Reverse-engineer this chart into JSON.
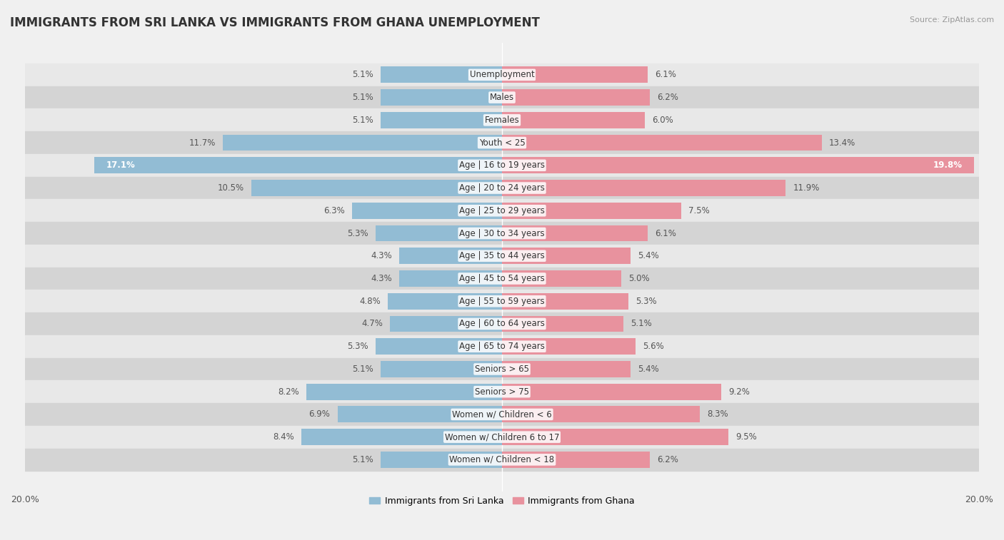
{
  "title": "IMMIGRANTS FROM SRI LANKA VS IMMIGRANTS FROM GHANA UNEMPLOYMENT",
  "source": "Source: ZipAtlas.com",
  "categories": [
    "Unemployment",
    "Males",
    "Females",
    "Youth < 25",
    "Age | 16 to 19 years",
    "Age | 20 to 24 years",
    "Age | 25 to 29 years",
    "Age | 30 to 34 years",
    "Age | 35 to 44 years",
    "Age | 45 to 54 years",
    "Age | 55 to 59 years",
    "Age | 60 to 64 years",
    "Age | 65 to 74 years",
    "Seniors > 65",
    "Seniors > 75",
    "Women w/ Children < 6",
    "Women w/ Children 6 to 17",
    "Women w/ Children < 18"
  ],
  "sri_lanka": [
    5.1,
    5.1,
    5.1,
    11.7,
    17.1,
    10.5,
    6.3,
    5.3,
    4.3,
    4.3,
    4.8,
    4.7,
    5.3,
    5.1,
    8.2,
    6.9,
    8.4,
    5.1
  ],
  "ghana": [
    6.1,
    6.2,
    6.0,
    13.4,
    19.8,
    11.9,
    7.5,
    6.1,
    5.4,
    5.0,
    5.3,
    5.1,
    5.6,
    5.4,
    9.2,
    8.3,
    9.5,
    6.2
  ],
  "sri_lanka_color": "#92bcd4",
  "ghana_color": "#e8929e",
  "row_even_color": "#e8e8e8",
  "row_odd_color": "#d4d4d4",
  "fig_bg": "#f0f0f0",
  "xlim": 20.0,
  "bar_height": 0.72,
  "legend_sri_lanka": "Immigrants from Sri Lanka",
  "legend_ghana": "Immigrants from Ghana",
  "label_value_color_dark": "#555555",
  "label_value_color_light": "#ffffff",
  "label_threshold": 15.0
}
